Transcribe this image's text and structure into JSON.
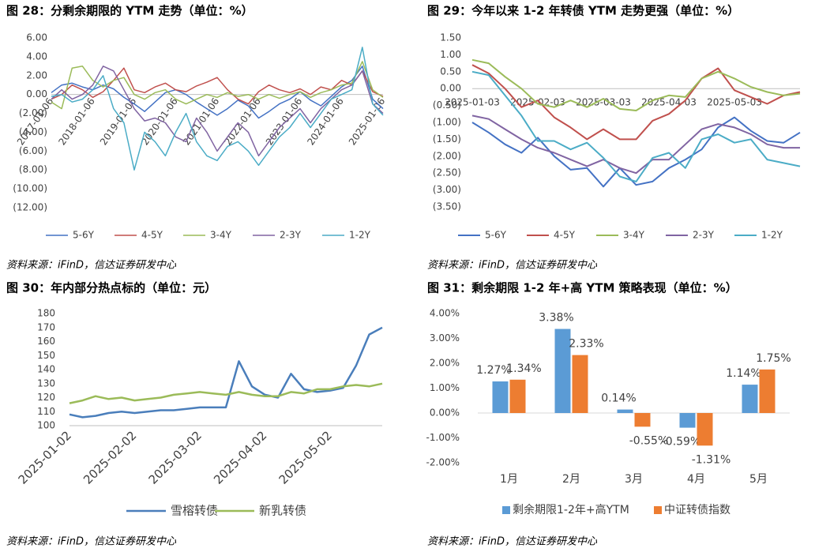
{
  "chart_data": [
    {
      "type": "line",
      "title": "图 28：分剩余期限的 YTM 走势（单位：%）",
      "source": "资料来源：iFinD，信达证券研发中心",
      "categories": [
        "2017-01-06",
        null,
        null,
        null,
        "2018-01-06",
        null,
        null,
        null,
        "2019-01-06",
        null,
        null,
        null,
        "2020-01-06",
        null,
        null,
        null,
        "2021-01-06",
        null,
        null,
        null,
        "2022-01-06",
        null,
        null,
        null,
        "2023-01-06",
        null,
        null,
        null,
        "2024-01-06",
        null,
        null,
        null,
        "2025-01-06"
      ],
      "ylim": [
        -12,
        6
      ],
      "yticks": [
        {
          "value": 6,
          "label": "6.00"
        },
        {
          "value": 4,
          "label": "4.00"
        },
        {
          "value": 2,
          "label": "2.00"
        },
        {
          "value": 0,
          "label": "0.00"
        },
        {
          "value": -2,
          "label": "(2.00)"
        },
        {
          "value": -4,
          "label": "(4.00)"
        },
        {
          "value": -6,
          "label": "(6.00)"
        },
        {
          "value": -8,
          "label": "(8.00)"
        },
        {
          "value": -10,
          "label": "(10.00)"
        },
        {
          "value": -12,
          "label": "(12.00)"
        }
      ],
      "negative_tick_color": "#c00000",
      "series": [
        {
          "name": "5-6Y",
          "color": "#4472c4",
          "values": [
            0.2,
            1.0,
            1.2,
            0.8,
            0.5,
            1.0,
            0.6,
            -0.3,
            -1.0,
            -1.8,
            -0.8,
            0.2,
            0.5,
            0.0,
            -0.8,
            -1.5,
            -2.2,
            -1.5,
            -0.6,
            -1.2,
            -2.5,
            -1.8,
            -1.0,
            -0.5,
            0.3,
            -0.6,
            -1.2,
            -0.2,
            0.8,
            1.5,
            3.0,
            -0.5,
            -1.5
          ]
        },
        {
          "name": "4-5Y",
          "color": "#c0504d",
          "values": [
            -0.5,
            0.0,
            1.0,
            0.5,
            -0.3,
            0.3,
            1.5,
            2.8,
            0.5,
            0.2,
            0.8,
            1.2,
            0.5,
            0.3,
            0.9,
            1.3,
            1.8,
            0.5,
            -0.5,
            -1.0,
            0.3,
            1.0,
            0.5,
            0.2,
            0.6,
            0.0,
            0.8,
            0.5,
            1.5,
            1.0,
            2.5,
            0.3,
            -0.2
          ]
        },
        {
          "name": "3-4Y",
          "color": "#9bbb59",
          "values": [
            -0.8,
            -1.5,
            2.8,
            3.0,
            1.5,
            0.8,
            1.5,
            1.8,
            0.0,
            -0.5,
            0.2,
            0.5,
            -0.5,
            -1.0,
            -0.5,
            0.0,
            -0.3,
            0.2,
            -0.2,
            0.0,
            -0.5,
            0.0,
            -0.4,
            0.0,
            0.3,
            -0.3,
            0.2,
            0.5,
            1.0,
            1.2,
            3.5,
            0.5,
            -0.3
          ]
        },
        {
          "name": "2-3Y",
          "color": "#8064a2",
          "values": [
            -0.5,
            0.5,
            -0.5,
            0.0,
            1.0,
            3.0,
            2.5,
            0.5,
            -1.5,
            -2.8,
            -2.5,
            -3.0,
            -4.5,
            -5.0,
            -2.5,
            -4.0,
            -6.0,
            -4.5,
            -3.0,
            -4.0,
            -6.5,
            -5.0,
            -3.5,
            -2.5,
            -1.5,
            -3.0,
            -1.5,
            -0.5,
            0.5,
            1.0,
            2.5,
            -1.0,
            -2.0
          ]
        },
        {
          "name": "1-2Y",
          "color": "#4bacc6",
          "values": [
            -0.2,
            0.0,
            -0.8,
            -0.5,
            0.5,
            2.0,
            -1.5,
            -3.0,
            -8.0,
            -4.0,
            -5.0,
            -6.5,
            -4.0,
            -2.0,
            -5.0,
            -6.5,
            -7.0,
            -5.5,
            -5.0,
            -6.0,
            -7.5,
            -6.0,
            -4.5,
            -3.5,
            -2.0,
            -3.5,
            -2.0,
            -0.5,
            0.0,
            0.5,
            5.0,
            -1.0,
            -2.2
          ]
        }
      ]
    },
    {
      "type": "line",
      "title": "图 29：今年以来 1-2 年转债 YTM 走势更强（单位：%）",
      "source": "资料来源：iFinD，信达证券研发中心",
      "categories": [
        "2025-01-03",
        null,
        null,
        null,
        "2025-02-03",
        null,
        null,
        null,
        "2025-03-03",
        null,
        null,
        null,
        "2025-04-03",
        null,
        null,
        null,
        "2025-05-03",
        null,
        null,
        null,
        null
      ],
      "ylim": [
        -3.5,
        1.5
      ],
      "yticks": [
        {
          "value": 1.5,
          "label": "1.50"
        },
        {
          "value": 1,
          "label": "1.00"
        },
        {
          "value": 0.5,
          "label": "0.50"
        },
        {
          "value": 0,
          "label": "0.00"
        },
        {
          "value": -0.5,
          "label": "(0.50)"
        },
        {
          "value": -1,
          "label": "(1.00)"
        },
        {
          "value": -1.5,
          "label": "(1.50)"
        },
        {
          "value": -2,
          "label": "(2.00)"
        },
        {
          "value": -2.5,
          "label": "(2.50)"
        },
        {
          "value": -3,
          "label": "(3.00)"
        },
        {
          "value": -3.5,
          "label": "(3.50)"
        }
      ],
      "series": [
        {
          "name": "5-6Y",
          "color": "#4472c4",
          "values": [
            -1.0,
            -1.3,
            -1.65,
            -1.9,
            -1.45,
            -2.0,
            -2.4,
            -2.35,
            -2.9,
            -2.35,
            -2.85,
            -2.75,
            -2.35,
            -2.1,
            -1.8,
            -1.15,
            -0.85,
            -1.25,
            -1.55,
            -1.6,
            -1.3
          ]
        },
        {
          "name": "4-5Y",
          "color": "#c0504d",
          "values": [
            0.7,
            0.45,
            0.0,
            -0.55,
            -0.35,
            -0.85,
            -1.15,
            -1.5,
            -1.2,
            -1.5,
            -1.5,
            -0.95,
            -0.75,
            -0.35,
            0.3,
            0.6,
            -0.05,
            -0.25,
            -0.45,
            -0.2,
            -0.1
          ]
        },
        {
          "name": "3-4Y",
          "color": "#9bbb59",
          "values": [
            0.85,
            0.75,
            0.35,
            0.0,
            -0.45,
            -0.55,
            -0.35,
            -0.55,
            -0.3,
            -0.6,
            -0.65,
            -0.35,
            -0.2,
            -0.25,
            0.3,
            0.5,
            0.3,
            0.05,
            -0.1,
            -0.2,
            -0.15
          ]
        },
        {
          "name": "2-3Y",
          "color": "#8064a2",
          "values": [
            -0.8,
            -0.9,
            -1.2,
            -1.5,
            -1.75,
            -1.9,
            -2.1,
            -2.3,
            -2.1,
            -2.35,
            -2.5,
            -2.1,
            -2.1,
            -1.65,
            -1.2,
            -1.05,
            -1.15,
            -1.35,
            -1.65,
            -1.75,
            -1.75
          ]
        },
        {
          "name": "1-2Y",
          "color": "#4bacc6",
          "values": [
            0.5,
            0.4,
            -0.2,
            -0.8,
            -1.55,
            -1.55,
            -1.8,
            -1.6,
            -2.05,
            -2.6,
            -2.75,
            -2.05,
            -1.9,
            -2.35,
            -1.5,
            -1.35,
            -1.6,
            -1.5,
            -2.1,
            -2.2,
            -2.3
          ]
        }
      ]
    },
    {
      "type": "line",
      "title": "图 30：年内部分热点标的（单位：元）",
      "source": "资料来源：iFinD，信达证券研发中心",
      "categories": [
        "2025-01-02",
        null,
        null,
        null,
        null,
        "2025-02-02",
        null,
        null,
        null,
        null,
        "2025-03-02",
        null,
        null,
        null,
        null,
        "2025-04-02",
        null,
        null,
        null,
        null,
        "2025-05-02",
        null,
        null,
        null,
        null
      ],
      "ylim": [
        100,
        180
      ],
      "yticks": [
        100,
        110,
        120,
        130,
        140,
        150,
        160,
        170,
        180
      ],
      "series": [
        {
          "name": "雪榕转债",
          "color": "#4a7ebb",
          "values": [
            108,
            106,
            107,
            109,
            110,
            109,
            110,
            111,
            111,
            112,
            113,
            113,
            113,
            146,
            128,
            122,
            120,
            137,
            126,
            124,
            125,
            127,
            143,
            165,
            170
          ]
        },
        {
          "name": "新乳转债",
          "color": "#9bbb59",
          "values": [
            116,
            118,
            121,
            119,
            120,
            118,
            119,
            120,
            122,
            123,
            124,
            123,
            122,
            124,
            122,
            121,
            121,
            124,
            123,
            126,
            126,
            128,
            129,
            128,
            130
          ]
        }
      ]
    },
    {
      "type": "bar",
      "title": "图 31：剩余期限 1-2 年+高 YTM 策略表现（单位：%）",
      "source": "资料来源：iFinD，信达证券研发中心",
      "categories": [
        "1月",
        "2月",
        "3月",
        "4月",
        "5月"
      ],
      "ylim": [
        -2,
        4
      ],
      "yticks": [
        {
          "value": 4,
          "label": "4.00%"
        },
        {
          "value": 3,
          "label": "3.00%"
        },
        {
          "value": 2,
          "label": "2.00%"
        },
        {
          "value": 1,
          "label": "1.00%"
        },
        {
          "value": 0,
          "label": "0.00%"
        },
        {
          "value": -1,
          "label": "-1.00%"
        },
        {
          "value": -2,
          "label": "-2.00%"
        }
      ],
      "series": [
        {
          "name": "剩余期限1-2年+高YTM",
          "color": "#5b9bd5",
          "values": [
            1.27,
            3.38,
            0.14,
            -0.59,
            1.14
          ],
          "value_labels": [
            "1.27%",
            "3.38%",
            "0.14%",
            "-0.59%",
            "1.14%"
          ]
        },
        {
          "name": "中证转债指数",
          "color": "#ed7d31",
          "values": [
            1.34,
            2.33,
            -0.55,
            -1.31,
            1.75
          ],
          "value_labels": [
            "1.34%",
            "2.33%",
            "-0.55%",
            "-1.31%",
            "1.75%"
          ]
        }
      ]
    }
  ]
}
